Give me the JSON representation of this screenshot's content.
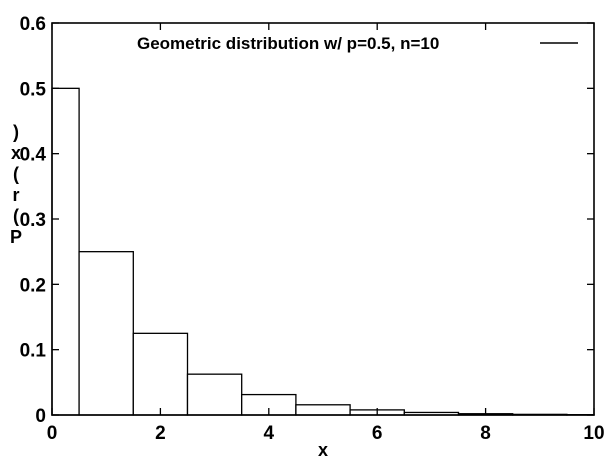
{
  "chart_data": {
    "type": "bar",
    "title": "Geometric distribution w/ p=0.5, n=10",
    "xlabel": "x",
    "ylabel": "P(r(x)",
    "xlim": [
      0,
      10
    ],
    "ylim": [
      0,
      0.6
    ],
    "x_ticks": [
      "0",
      "2",
      "4",
      "6",
      "8",
      "10"
    ],
    "y_ticks": [
      "0",
      "0.1",
      "0.2",
      "0.3",
      "0.4",
      "0.5",
      "0.6"
    ],
    "x": [
      0,
      1,
      2,
      3,
      4,
      5,
      6,
      7,
      8,
      9,
      10
    ],
    "values": [
      0.5,
      0.25,
      0.125,
      0.0625,
      0.03125,
      0.015625,
      0.0078125,
      0.00390625,
      0.001953125,
      0.0009765625,
      0.00048828125
    ],
    "grid": false,
    "legend": "none"
  }
}
